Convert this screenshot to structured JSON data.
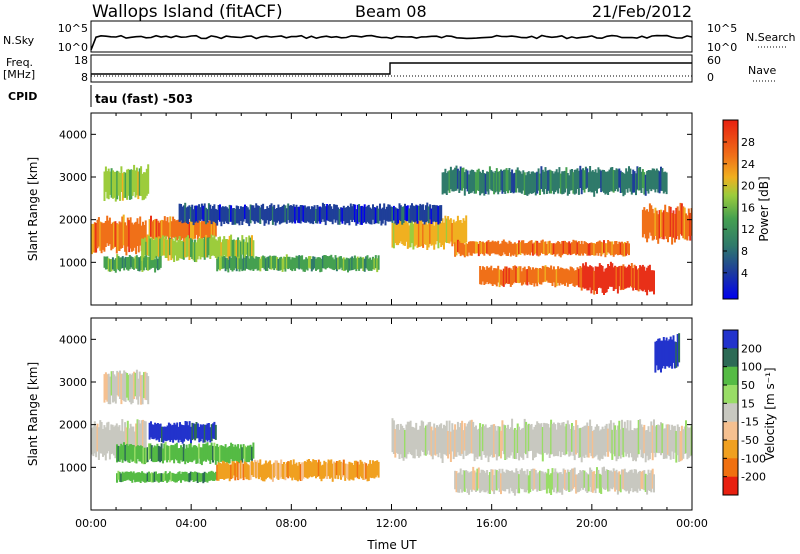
{
  "header": {
    "station": "Wallops Island (fitACF)",
    "beam": "Beam 08",
    "date": "21/Feb/2012"
  },
  "strip": {
    "nsky_label": "N.Sky",
    "nsearch_label": "N.Search",
    "nsky_ticks": [
      "10^5",
      "10^0"
    ],
    "nsearch_ticks": [
      "10^5",
      "10^0"
    ],
    "freq_label_1": "Freq.",
    "freq_label_2": "[MHz]",
    "freq_ticks": [
      "18",
      "8"
    ],
    "nave_label": "Nave",
    "nave_ticks": [
      "60",
      "0"
    ],
    "cpid_label": "CPID",
    "cpid_value": "tau (fast) -503"
  },
  "chart_data": [
    {
      "type": "heatmap",
      "name": "power",
      "xlabel": "",
      "ylabel": "Slant Range [km]",
      "xlim": [
        0,
        24
      ],
      "ylim": [
        0,
        4500
      ],
      "yticks": [
        "1000",
        "2000",
        "3000",
        "4000"
      ],
      "colorbar_label": "Power [dB]",
      "colorbar_ticks": [
        "28",
        "24",
        "20",
        "16",
        "12",
        "8",
        "4"
      ],
      "colors": [
        "#0000ee",
        "#1f3f99",
        "#2f7a6a",
        "#45a050",
        "#9ccc3c",
        "#f0b020",
        "#f07018",
        "#e83018"
      ],
      "bands": [
        {
          "t0": 0.0,
          "t1": 2.2,
          "r0": 1250,
          "r1": 2050,
          "level": 6
        },
        {
          "t0": 0.5,
          "t1": 2.3,
          "r0": 2500,
          "r1": 3250,
          "level": 4
        },
        {
          "t0": 0.5,
          "t1": 2.8,
          "r0": 800,
          "r1": 1150,
          "level": 3
        },
        {
          "t0": 2.3,
          "t1": 5.0,
          "r0": 1500,
          "r1": 2050,
          "level": 6
        },
        {
          "t0": 2.0,
          "t1": 6.5,
          "r0": 1050,
          "r1": 1600,
          "level": 4
        },
        {
          "t0": 5.0,
          "t1": 11.5,
          "r0": 800,
          "r1": 1150,
          "level": 3
        },
        {
          "t0": 12.0,
          "t1": 15.0,
          "r0": 1350,
          "r1": 2050,
          "level": 5
        },
        {
          "t0": 14.5,
          "t1": 21.5,
          "r0": 1150,
          "r1": 1500,
          "level": 6
        },
        {
          "t0": 15.5,
          "t1": 19.5,
          "r0": 450,
          "r1": 900,
          "level": 6
        },
        {
          "t0": 19.5,
          "t1": 22.5,
          "r0": 300,
          "r1": 950,
          "level": 7
        },
        {
          "t0": 22.0,
          "t1": 24.0,
          "r0": 1500,
          "r1": 2300,
          "level": 6
        },
        {
          "t0": 3.5,
          "t1": 14.0,
          "r0": 1900,
          "r1": 2350,
          "level": 1
        },
        {
          "t0": 14.0,
          "t1": 23.0,
          "r0": 2600,
          "r1": 3200,
          "level": 2
        }
      ]
    },
    {
      "type": "heatmap",
      "name": "velocity",
      "xlabel": "Time UT",
      "ylabel": "Slant Range [km]",
      "xlim": [
        0,
        24
      ],
      "ylim": [
        0,
        4500
      ],
      "xticks": [
        "00:00",
        "04:00",
        "08:00",
        "12:00",
        "16:00",
        "20:00",
        "00:00"
      ],
      "yticks": [
        "1000",
        "2000",
        "3000",
        "4000"
      ],
      "colorbar_label": "Velocity [m s⁻¹]",
      "colorbar_ticks": [
        "200",
        "100",
        "50",
        "15",
        "-15",
        "-50",
        "-100",
        "-200"
      ],
      "colors": [
        "#2233cc",
        "#2c6a55",
        "#55bb44",
        "#99dd66",
        "#c8c8c0",
        "#f5c090",
        "#f0a020",
        "#f07010",
        "#e82010"
      ],
      "bands": [
        {
          "t0": 0.0,
          "t1": 2.2,
          "r0": 1250,
          "r1": 2050,
          "level": 4
        },
        {
          "t0": 0.5,
          "t1": 2.3,
          "r0": 2500,
          "r1": 3250,
          "level": 4
        },
        {
          "t0": 2.3,
          "t1": 5.0,
          "r0": 1600,
          "r1": 2050,
          "level": 0
        },
        {
          "t0": 1.0,
          "t1": 6.5,
          "r0": 1100,
          "r1": 1550,
          "level": 2
        },
        {
          "t0": 1.0,
          "t1": 5.0,
          "r0": 650,
          "r1": 900,
          "level": 2
        },
        {
          "t0": 5.0,
          "t1": 11.5,
          "r0": 700,
          "r1": 1150,
          "level": 6
        },
        {
          "t0": 12.0,
          "t1": 24.0,
          "r0": 1200,
          "r1": 2050,
          "level": 4
        },
        {
          "t0": 14.5,
          "t1": 22.5,
          "r0": 400,
          "r1": 950,
          "level": 4
        },
        {
          "t0": 22.5,
          "t1": 23.5,
          "r0": 3300,
          "r1": 4100,
          "level": 0
        }
      ]
    }
  ]
}
